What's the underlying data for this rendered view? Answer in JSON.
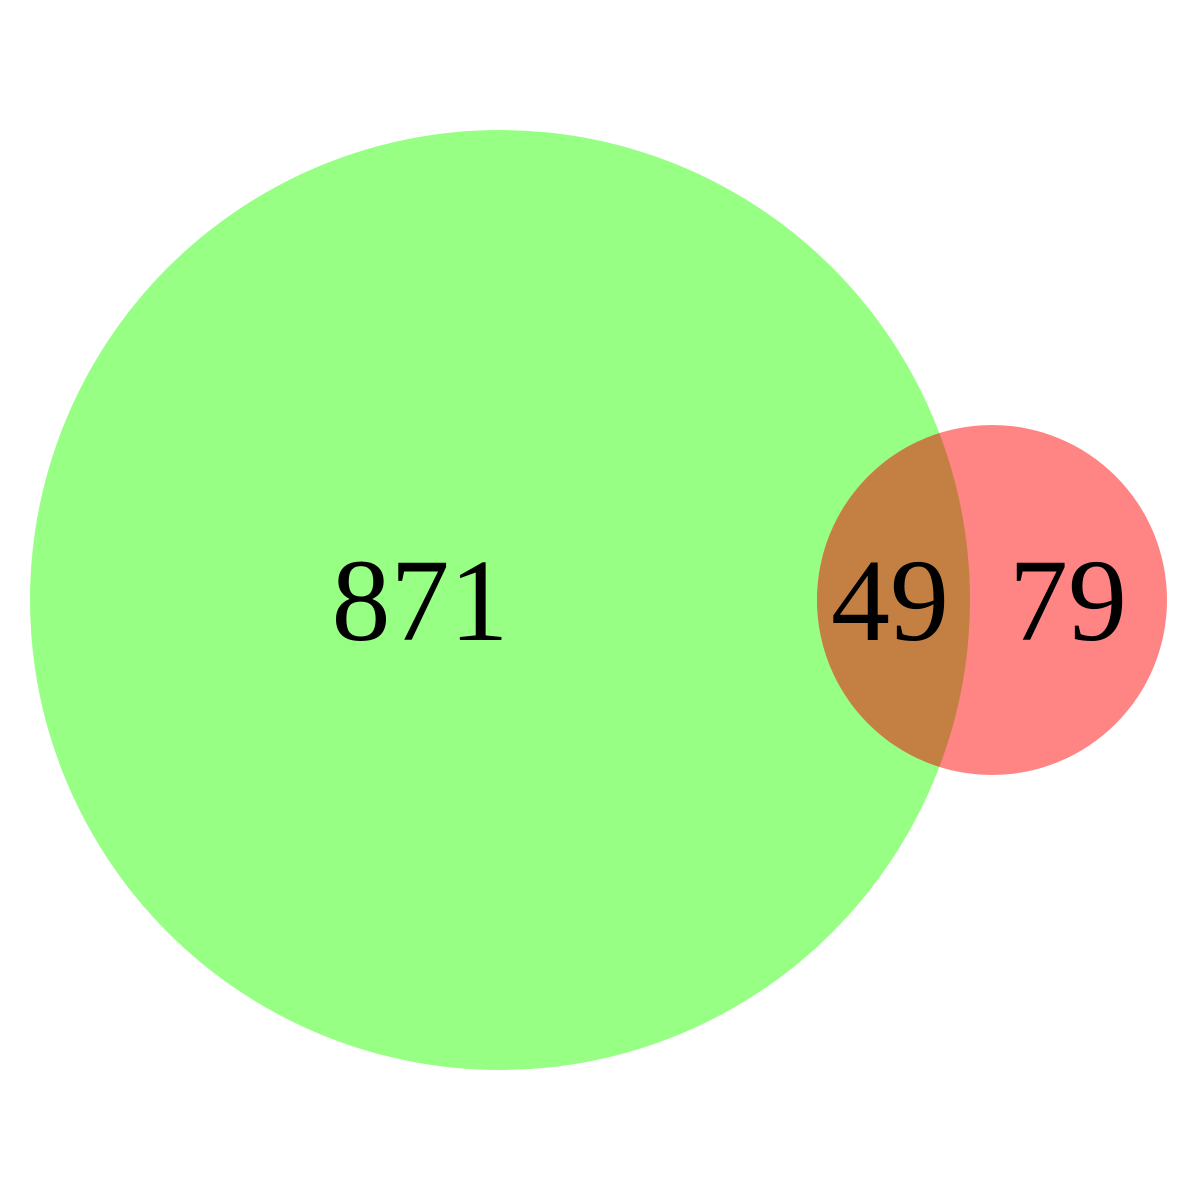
{
  "venn": {
    "sets": [
      {
        "key": "a",
        "size": 920,
        "color": "#98ff85"
      },
      {
        "key": "b",
        "size": 128,
        "color": "#ff8585"
      }
    ],
    "overlap_color": "#c48043",
    "regions": {
      "a_only": "871",
      "both": "49",
      "b_only": "79"
    }
  }
}
